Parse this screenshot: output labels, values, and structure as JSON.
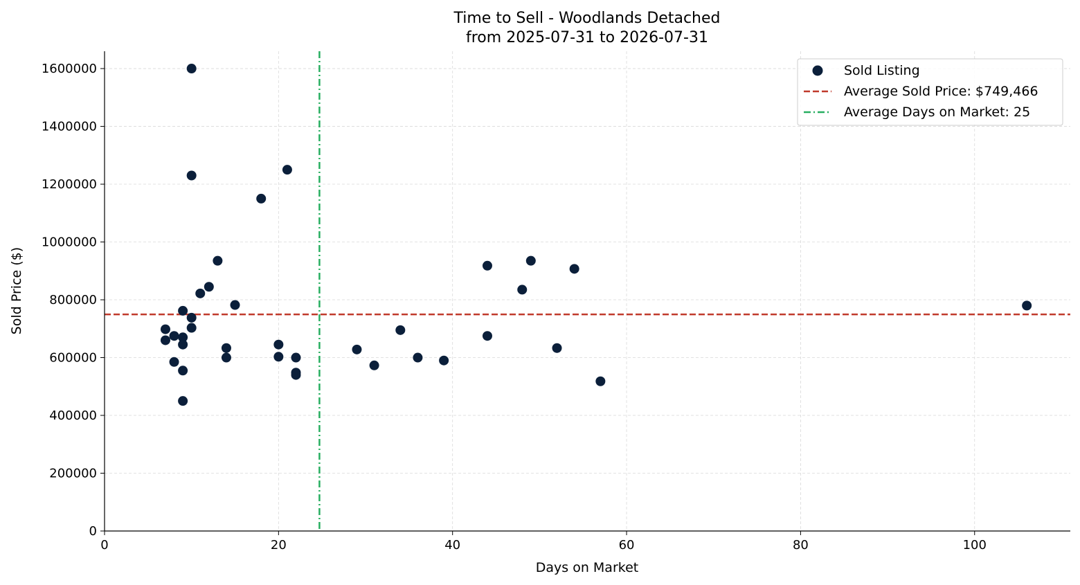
{
  "chart_data": {
    "type": "scatter",
    "title_line1": "Time to Sell - Woodlands Detached",
    "title_line2": "from 2025-07-31 to 2026-07-31",
    "xlabel": "Days on Market",
    "ylabel": "Sold Price ($)",
    "xlim": [
      0,
      111
    ],
    "ylim": [
      0,
      1660000
    ],
    "xticks": [
      0,
      20,
      40,
      60,
      80,
      100
    ],
    "yticks": [
      0,
      200000,
      400000,
      600000,
      800000,
      1000000,
      1200000,
      1400000,
      1600000
    ],
    "grid": true,
    "legend_position": "top-right",
    "series": [
      {
        "name": "Sold Listing",
        "color": "#0b1f3a",
        "points": [
          [
            10,
            1600000
          ],
          [
            10,
            1230000
          ],
          [
            21,
            1250000
          ],
          [
            18,
            1150000
          ],
          [
            13,
            935000
          ],
          [
            12,
            845000
          ],
          [
            11,
            822000
          ],
          [
            15,
            782000
          ],
          [
            9,
            762000
          ],
          [
            10,
            738000
          ],
          [
            10,
            703000
          ],
          [
            7,
            698000
          ],
          [
            8,
            675000
          ],
          [
            9,
            670000
          ],
          [
            7,
            660000
          ],
          [
            9,
            645000
          ],
          [
            14,
            633000
          ],
          [
            14,
            600000
          ],
          [
            8,
            585000
          ],
          [
            9,
            555000
          ],
          [
            9,
            450000
          ],
          [
            20,
            645000
          ],
          [
            20,
            603000
          ],
          [
            22,
            600000
          ],
          [
            22,
            548000
          ],
          [
            22,
            540000
          ],
          [
            29,
            628000
          ],
          [
            31,
            573000
          ],
          [
            34,
            695000
          ],
          [
            36,
            600000
          ],
          [
            39,
            590000
          ],
          [
            44,
            918000
          ],
          [
            44,
            675000
          ],
          [
            48,
            835000
          ],
          [
            49,
            935000
          ],
          [
            52,
            633000
          ],
          [
            54,
            907000
          ],
          [
            57,
            518000
          ],
          [
            106,
            780000
          ]
        ]
      }
    ],
    "reference_lines": {
      "avg_price": {
        "value": 749466,
        "label": "Average Sold Price: $749,466",
        "color": "#c0392b"
      },
      "avg_days": {
        "value": 24.7,
        "label": "Average Days on Market: 25",
        "color": "#27ae60"
      }
    }
  }
}
